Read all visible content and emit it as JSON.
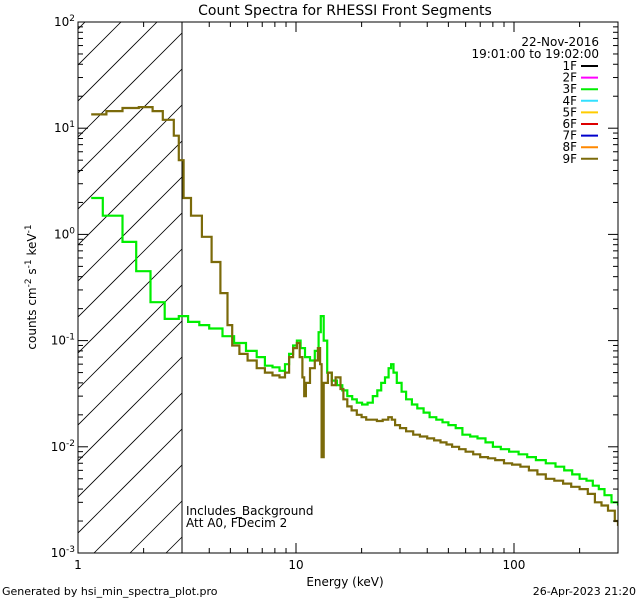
{
  "chart_data": {
    "type": "line",
    "title": "Count Spectra for RHESSI Front Segments",
    "xlabel": "Energy (keV)",
    "ylabel_parts": [
      "counts cm",
      "-2",
      " s",
      "-1",
      " keV",
      "-1"
    ],
    "xscale": "log",
    "yscale": "log",
    "xlim": [
      1,
      300
    ],
    "ylim": [
      0.001,
      100
    ],
    "x_ticks": [
      {
        "value": 1,
        "label": "1"
      },
      {
        "value": 10,
        "label": "10"
      },
      {
        "value": 100,
        "label": "100"
      }
    ],
    "y_ticks": [
      {
        "value": 0.001,
        "base": "10",
        "exp": "-3"
      },
      {
        "value": 0.01,
        "base": "10",
        "exp": "-2"
      },
      {
        "value": 0.1,
        "base": "10",
        "exp": "-1"
      },
      {
        "value": 1,
        "base": "10",
        "exp": "0"
      },
      {
        "value": 10,
        "base": "10",
        "exp": "1"
      },
      {
        "value": 100,
        "base": "10",
        "exp": "2"
      }
    ],
    "date": "22-Nov-2016",
    "time_range": "19:01:00 to 19:02:00",
    "hatched_region_xmax": 3,
    "legend": [
      {
        "label": "1F",
        "color": "#000000"
      },
      {
        "label": "2F",
        "color": "#ff00ff"
      },
      {
        "label": "3F",
        "color": "#00ee00"
      },
      {
        "label": "4F",
        "color": "#33e0ff"
      },
      {
        "label": "5F",
        "color": "#ffcc00"
      },
      {
        "label": "6F",
        "color": "#dd0000"
      },
      {
        "label": "7F",
        "color": "#0000cc"
      },
      {
        "label": "8F",
        "color": "#ff8800"
      },
      {
        "label": "9F",
        "color": "#7b6a0a"
      }
    ],
    "annotations": [
      "Includes_Background",
      "Att A0, FDecim 2"
    ],
    "series": [
      {
        "name": "3F",
        "color": "#00ee00",
        "points": [
          [
            1.15,
            2.2
          ],
          [
            1.3,
            1.5
          ],
          [
            1.6,
            0.85
          ],
          [
            1.85,
            0.45
          ],
          [
            2.15,
            0.23
          ],
          [
            2.5,
            0.16
          ],
          [
            2.9,
            0.17
          ],
          [
            3.2,
            0.15
          ],
          [
            3.6,
            0.14
          ],
          [
            4.0,
            0.13
          ],
          [
            4.6,
            0.11
          ],
          [
            5.2,
            0.095
          ],
          [
            5.9,
            0.08
          ],
          [
            6.6,
            0.07
          ],
          [
            7.2,
            0.058
          ],
          [
            7.8,
            0.056
          ],
          [
            8.4,
            0.052
          ],
          [
            8.9,
            0.06
          ],
          [
            9.3,
            0.075
          ],
          [
            9.7,
            0.09
          ],
          [
            10.1,
            0.1
          ],
          [
            10.5,
            0.085
          ],
          [
            11.0,
            0.07
          ],
          [
            11.6,
            0.065
          ],
          [
            12.2,
            0.08
          ],
          [
            12.7,
            0.12
          ],
          [
            13.0,
            0.17
          ],
          [
            13.4,
            0.1
          ],
          [
            13.9,
            0.05
          ],
          [
            14.6,
            0.042
          ],
          [
            15.4,
            0.038
          ],
          [
            16.3,
            0.034
          ],
          [
            17.2,
            0.03
          ],
          [
            18.1,
            0.028
          ],
          [
            19.0,
            0.026
          ],
          [
            20.1,
            0.025
          ],
          [
            21.3,
            0.026
          ],
          [
            22.5,
            0.03
          ],
          [
            23.6,
            0.034
          ],
          [
            24.6,
            0.04
          ],
          [
            25.6,
            0.045
          ],
          [
            26.6,
            0.055
          ],
          [
            27.3,
            0.06
          ],
          [
            28.0,
            0.05
          ],
          [
            29.0,
            0.04
          ],
          [
            30.5,
            0.033
          ],
          [
            32.0,
            0.028
          ],
          [
            34.0,
            0.025
          ],
          [
            36.0,
            0.023
          ],
          [
            38.5,
            0.021
          ],
          [
            41.0,
            0.019
          ],
          [
            44.0,
            0.018
          ],
          [
            47.0,
            0.017
          ],
          [
            50.0,
            0.016
          ],
          [
            54.0,
            0.015
          ],
          [
            58.0,
            0.013
          ],
          [
            63.0,
            0.0125
          ],
          [
            68.0,
            0.012
          ],
          [
            74.0,
            0.011
          ],
          [
            80.0,
            0.01
          ],
          [
            87.0,
            0.0095
          ],
          [
            95.0,
            0.009
          ],
          [
            105.0,
            0.0085
          ],
          [
            115.0,
            0.008
          ],
          [
            126.0,
            0.0075
          ],
          [
            140.0,
            0.007
          ],
          [
            155.0,
            0.0065
          ],
          [
            170.0,
            0.006
          ],
          [
            185.0,
            0.0055
          ],
          [
            200.0,
            0.005
          ],
          [
            215.0,
            0.0048
          ],
          [
            230.0,
            0.0043
          ],
          [
            245.0,
            0.004
          ],
          [
            260.0,
            0.0035
          ],
          [
            280.0,
            0.003
          ],
          [
            300.0,
            0.0028
          ]
        ]
      },
      {
        "name": "9F",
        "color": "#7b6a0a",
        "points": [
          [
            1.15,
            13.5
          ],
          [
            1.35,
            14.5
          ],
          [
            1.6,
            15.5
          ],
          [
            1.9,
            15.8
          ],
          [
            2.2,
            14.5
          ],
          [
            2.45,
            12.0
          ],
          [
            2.75,
            8.5
          ],
          [
            2.9,
            5.0
          ],
          [
            3.05,
            2.2
          ],
          [
            3.3,
            1.5
          ],
          [
            3.7,
            0.95
          ],
          [
            4.1,
            0.55
          ],
          [
            4.5,
            0.28
          ],
          [
            4.85,
            0.14
          ],
          [
            5.1,
            0.09
          ],
          [
            5.5,
            0.075
          ],
          [
            6.0,
            0.065
          ],
          [
            6.6,
            0.055
          ],
          [
            7.2,
            0.05
          ],
          [
            7.8,
            0.047
          ],
          [
            8.4,
            0.045
          ],
          [
            8.9,
            0.05
          ],
          [
            9.3,
            0.07
          ],
          [
            9.7,
            0.085
          ],
          [
            10.1,
            0.095
          ],
          [
            10.4,
            0.07
          ],
          [
            10.7,
            0.045
          ],
          [
            10.9,
            0.03
          ],
          [
            11.1,
            0.04
          ],
          [
            11.6,
            0.055
          ],
          [
            12.2,
            0.065
          ],
          [
            12.6,
            0.085
          ],
          [
            12.9,
            0.06
          ],
          [
            13.1,
            0.008
          ],
          [
            13.4,
            0.04
          ],
          [
            14.0,
            0.05
          ],
          [
            14.6,
            0.038
          ],
          [
            15.2,
            0.045
          ],
          [
            15.6,
            0.045
          ],
          [
            16.0,
            0.035
          ],
          [
            16.5,
            0.028
          ],
          [
            17.2,
            0.024
          ],
          [
            18.0,
            0.022
          ],
          [
            19.0,
            0.02
          ],
          [
            20.0,
            0.019
          ],
          [
            21.0,
            0.018
          ],
          [
            22.2,
            0.018
          ],
          [
            23.5,
            0.0175
          ],
          [
            25.0,
            0.018
          ],
          [
            26.5,
            0.019
          ],
          [
            27.5,
            0.018
          ],
          [
            28.5,
            0.016
          ],
          [
            30.0,
            0.015
          ],
          [
            32.0,
            0.014
          ],
          [
            34.5,
            0.013
          ],
          [
            37.0,
            0.0125
          ],
          [
            40.0,
            0.012
          ],
          [
            43.0,
            0.0115
          ],
          [
            46.0,
            0.011
          ],
          [
            49.0,
            0.0105
          ],
          [
            52.0,
            0.01
          ],
          [
            56.0,
            0.0095
          ],
          [
            60.0,
            0.009
          ],
          [
            65.0,
            0.0085
          ],
          [
            70.0,
            0.008
          ],
          [
            76.0,
            0.0078
          ],
          [
            82.0,
            0.0075
          ],
          [
            90.0,
            0.007
          ],
          [
            98.0,
            0.0068
          ],
          [
            107.0,
            0.0065
          ],
          [
            117.0,
            0.006
          ],
          [
            128.0,
            0.0055
          ],
          [
            140.0,
            0.005
          ],
          [
            153.0,
            0.0048
          ],
          [
            168.0,
            0.0045
          ],
          [
            183.0,
            0.0042
          ],
          [
            200.0,
            0.004
          ],
          [
            218.0,
            0.0036
          ],
          [
            235.0,
            0.003
          ],
          [
            252.0,
            0.0028
          ],
          [
            270.0,
            0.0025
          ],
          [
            290.0,
            0.002
          ],
          [
            300.0,
            0.0018
          ]
        ]
      }
    ]
  },
  "footer": {
    "generated_by": "Generated by hsi_min_spectra_plot.pro",
    "timestamp": "26-Apr-2023 21:20"
  }
}
